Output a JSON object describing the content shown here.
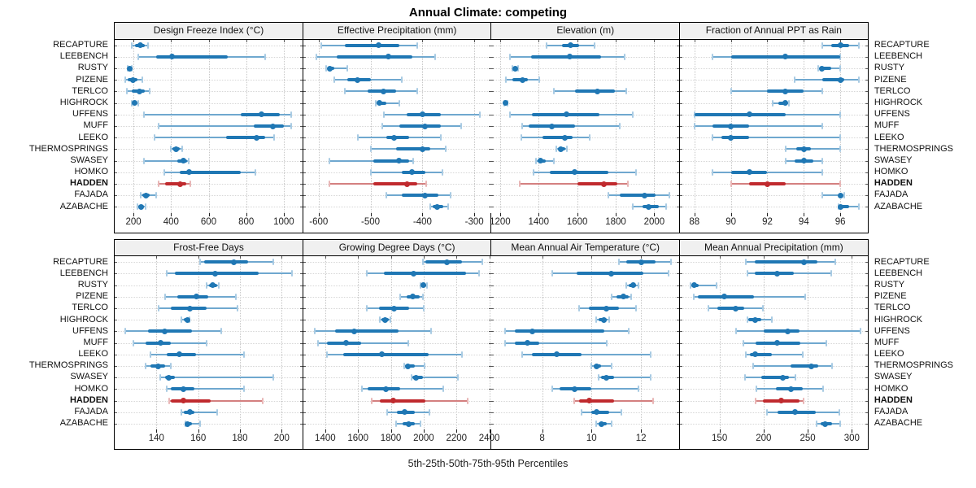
{
  "title": "Annual Climate: competing",
  "caption": "5th-25th-50th-75th-95th Percentiles",
  "highlight_site": "HADDEN",
  "colors": {
    "blue": "#1f77b4",
    "blue_line": "#6fa8cf",
    "blue_cap": "#a9cbe3",
    "red": "#c02a2e",
    "red_line": "#d48080",
    "red_cap": "#e8b6b6",
    "header_bg": "#f0f0f0",
    "grid": "#c6c6c6",
    "border": "#000000"
  },
  "sites": [
    "RECAPTURE",
    "LEEBENCH",
    "RUSTY",
    "PIZENE",
    "TERLCO",
    "HIGHROCK",
    "UFFENS",
    "MUFF",
    "LEEKO",
    "THERMOSPRINGS",
    "SWASEY",
    "HOMKO",
    "HADDEN",
    "FAJADA",
    "AZABACHE"
  ],
  "chart_data": {
    "type": "dotplot-percentiles",
    "percentiles": [
      5,
      25,
      50,
      75,
      95
    ],
    "rows": [
      "RECAPTURE",
      "LEEBENCH",
      "RUSTY",
      "PIZENE",
      "TERLCO",
      "HIGHROCK",
      "UFFENS",
      "MUFF",
      "LEEKO",
      "THERMOSPRINGS",
      "SWASEY",
      "HOMKO",
      "HADDEN",
      "FAJADA",
      "AZABACHE"
    ],
    "panels": [
      {
        "key": "design-freeze-index",
        "title": "Design Freeze Index (°C)",
        "band": "top",
        "ticks": [
          200,
          400,
          600,
          800,
          1000
        ],
        "range": [
          100,
          1100
        ],
        "values": {
          "RECAPTURE": [
            190,
            207,
            236,
            260,
            276
          ],
          "LEEBENCH": [
            225,
            320,
            405,
            700,
            900
          ],
          "RUSTY": [
            170,
            174,
            178,
            183,
            192
          ],
          "PIZENE": [
            155,
            168,
            197,
            222,
            247
          ],
          "TERLCO": [
            163,
            193,
            232,
            261,
            285
          ],
          "HIGHROCK": [
            193,
            200,
            207,
            215,
            226
          ],
          "UFFENS": [
            255,
            770,
            883,
            980,
            1040
          ],
          "MUFF": [
            334,
            840,
            940,
            1000,
            1040
          ],
          "LEEKO": [
            310,
            695,
            857,
            900,
            948
          ],
          "THERMOSPRINGS": [
            400,
            407,
            429,
            448,
            460
          ],
          "SWASEY": [
            255,
            434,
            466,
            485,
            495
          ],
          "HOMKO": [
            364,
            448,
            495,
            770,
            850
          ],
          "HADDEN": [
            335,
            368,
            450,
            480,
            504
          ],
          "FAJADA": [
            237,
            247,
            266,
            288,
            320
          ],
          "AZABACHE": [
            222,
            226,
            241,
            255,
            266
          ]
        }
      },
      {
        "key": "effective-precipitation",
        "title": "Effective Precipitation (mm)",
        "band": "top",
        "ticks": [
          -600,
          -500,
          -400,
          -300
        ],
        "range": [
          -630,
          -268
        ],
        "values": {
          "RECAPTURE": [
            -595,
            -550,
            -485,
            -445,
            -410
          ],
          "LEEBENCH": [
            -605,
            -565,
            -465,
            -420,
            -375
          ],
          "RUSTY": [
            -585,
            -582,
            -578,
            -570,
            -545
          ],
          "PIZENE": [
            -570,
            -545,
            -525,
            -500,
            -440
          ],
          "TERLCO": [
            -550,
            -505,
            -475,
            -450,
            -410
          ],
          "HIGHROCK": [
            -490,
            -487,
            -483,
            -470,
            -445
          ],
          "UFFENS": [
            -475,
            -430,
            -400,
            -365,
            -290
          ],
          "MUFF": [
            -478,
            -445,
            -395,
            -365,
            -325
          ],
          "LEEKO": [
            -525,
            -470,
            -455,
            -425,
            -365
          ],
          "THERMOSPRINGS": [
            -500,
            -450,
            -400,
            -385,
            -355
          ],
          "SWASEY": [
            -580,
            -495,
            -445,
            -425,
            -418
          ],
          "HOMKO": [
            -500,
            -440,
            -420,
            -395,
            -362
          ],
          "HADDEN": [
            -580,
            -495,
            -430,
            -410,
            -392
          ],
          "FAJADA": [
            -470,
            -440,
            -395,
            -370,
            -345
          ],
          "AZABACHE": [
            -385,
            -380,
            -372,
            -360,
            -350
          ]
        }
      },
      {
        "key": "elevation",
        "title": "Elevation (m)",
        "band": "top",
        "ticks": [
          1200,
          1400,
          1600,
          1800,
          2000
        ],
        "range": [
          1155,
          2130
        ],
        "values": {
          "RECAPTURE": [
            1440,
            1520,
            1565,
            1610,
            1690
          ],
          "LEEBENCH": [
            1250,
            1360,
            1560,
            1725,
            1845
          ],
          "RUSTY": [
            1265,
            1272,
            1280,
            1287,
            1295
          ],
          "PIZENE": [
            1230,
            1265,
            1315,
            1345,
            1405
          ],
          "TERLCO": [
            1480,
            1590,
            1705,
            1795,
            1855
          ],
          "HIGHROCK": [
            1222,
            1226,
            1230,
            1234,
            1240
          ],
          "UFFENS": [
            1250,
            1365,
            1545,
            1715,
            1890
          ],
          "MUFF": [
            1315,
            1350,
            1470,
            1590,
            1820
          ],
          "LEEKO": [
            1310,
            1420,
            1535,
            1575,
            1665
          ],
          "THERMOSPRINGS": [
            1490,
            1500,
            1515,
            1538,
            1548
          ],
          "SWASEY": [
            1385,
            1395,
            1410,
            1435,
            1477
          ],
          "HOMKO": [
            1375,
            1460,
            1585,
            1760,
            1905
          ],
          "HADDEN": [
            1300,
            1600,
            1738,
            1810,
            1865
          ],
          "FAJADA": [
            1760,
            1820,
            1950,
            2005,
            2080
          ],
          "AZABACHE": [
            1890,
            1940,
            1970,
            2025,
            2060
          ]
        }
      },
      {
        "key": "fraction-annual-ppt-rain",
        "title": "Fraction of Annual PPT as Rain",
        "band": "top",
        "ticks": [
          88,
          90,
          92,
          94,
          96
        ],
        "range": [
          87.2,
          97.5
        ],
        "values": {
          "RECAPTURE": [
            95,
            95.5,
            96,
            96.5,
            97
          ],
          "LEEBENCH": [
            89,
            90,
            93,
            96,
            96
          ],
          "RUSTY": [
            94.8,
            95,
            95,
            95.5,
            96
          ],
          "PIZENE": [
            93.5,
            95,
            96,
            96.2,
            97
          ],
          "TERLCO": [
            90,
            92,
            93,
            94,
            95
          ],
          "HIGHROCK": [
            92.3,
            92.6,
            93,
            93,
            93.2
          ],
          "UFFENS": [
            88,
            88,
            91,
            93,
            96
          ],
          "MUFF": [
            88,
            89,
            90,
            91,
            95
          ],
          "LEEKO": [
            89,
            89.5,
            90,
            91,
            96
          ],
          "THERMOSPRINGS": [
            93,
            93.6,
            94,
            94.4,
            96
          ],
          "SWASEY": [
            93,
            93.5,
            94,
            94.5,
            95
          ],
          "HOMKO": [
            89,
            90,
            91,
            92,
            95
          ],
          "HADDEN": [
            90,
            91,
            92,
            93,
            96
          ],
          "FAJADA": [
            95,
            95.9,
            96,
            96.1,
            96.2
          ],
          "AZABACHE": [
            95.9,
            96,
            96,
            96.5,
            97
          ]
        }
      },
      {
        "key": "frost-free-days",
        "title": "Frost-Free Days",
        "band": "bottom",
        "ticks": [
          140,
          160,
          180,
          200
        ],
        "range": [
          120,
          210
        ],
        "values": {
          "RECAPTURE": [
            161,
            163,
            177,
            184,
            196
          ],
          "LEEBENCH": [
            145,
            149,
            168,
            189,
            205
          ],
          "RUSTY": [
            164,
            165,
            167,
            169,
            170
          ],
          "PIZENE": [
            144,
            150,
            159,
            165,
            178
          ],
          "TERLCO": [
            141,
            147,
            156,
            164,
            179
          ],
          "HIGHROCK": [
            152,
            153,
            155,
            155.5,
            156
          ],
          "UFFENS": [
            125,
            136,
            144,
            157,
            171
          ],
          "MUFF": [
            129,
            135,
            142,
            147,
            164
          ],
          "LEEKO": [
            137,
            145,
            151,
            159,
            182
          ],
          "THERMOSPRINGS": [
            135,
            137,
            141,
            144,
            147
          ],
          "SWASEY": [
            142,
            144,
            146,
            149,
            196
          ],
          "HOMKO": [
            145,
            147,
            153,
            158,
            182
          ],
          "HADDEN": [
            146,
            147,
            153,
            166,
            191
          ],
          "FAJADA": [
            152,
            153,
            156,
            158,
            169
          ],
          "AZABACHE": [
            154,
            154.5,
            155,
            157,
            161
          ]
        }
      },
      {
        "key": "growing-degree-days",
        "title": "Growing Degree Days (°C)",
        "band": "bottom",
        "ticks": [
          1400,
          1600,
          1800,
          2000,
          2200,
          2400
        ],
        "range": [
          1265,
          2410
        ],
        "values": {
          "RECAPTURE": [
            1995,
            2010,
            2140,
            2235,
            2355
          ],
          "LEEBENCH": [
            1655,
            1760,
            1940,
            2260,
            2340
          ],
          "RUSTY": [
            1980,
            1985,
            2000,
            2015,
            2020
          ],
          "PIZENE": [
            1855,
            1895,
            1935,
            1975,
            1995
          ],
          "TERLCO": [
            1655,
            1730,
            1820,
            1910,
            2000
          ],
          "HIGHROCK": [
            1735,
            1745,
            1765,
            1785,
            1795
          ],
          "UFFENS": [
            1335,
            1460,
            1575,
            1845,
            2045
          ],
          "MUFF": [
            1355,
            1410,
            1525,
            1620,
            1905
          ],
          "LEEKO": [
            1410,
            1510,
            1745,
            2030,
            2235
          ],
          "THERMOSPRINGS": [
            1880,
            1885,
            1905,
            1945,
            2005
          ],
          "SWASEY": [
            1925,
            1930,
            1955,
            1995,
            2210
          ],
          "HOMKO": [
            1625,
            1660,
            1770,
            1855,
            2120
          ],
          "HADDEN": [
            1685,
            1735,
            1815,
            2010,
            2270
          ],
          "FAJADA": [
            1775,
            1835,
            1885,
            1945,
            2035
          ],
          "AZABACHE": [
            1830,
            1870,
            1910,
            1945,
            1980
          ]
        }
      },
      {
        "key": "mean-annual-air-temperature",
        "title": "Mean Annual Air Temperature (°C)",
        "band": "bottom",
        "ticks": [
          8,
          10,
          12
        ],
        "range": [
          5.95,
          13.55
        ],
        "values": {
          "RECAPTURE": [
            11.1,
            11.4,
            12.0,
            12.6,
            13.2
          ],
          "LEEBENCH": [
            8.4,
            9.4,
            10.8,
            12.1,
            13.1
          ],
          "RUSTY": [
            11.4,
            11.5,
            11.7,
            11.8,
            11.9
          ],
          "PIZENE": [
            10.8,
            11.0,
            11.3,
            11.5,
            11.6
          ],
          "TERLCO": [
            9.5,
            9.9,
            10.6,
            11.1,
            11.8
          ],
          "HIGHROCK": [
            10.2,
            10.3,
            10.5,
            10.6,
            10.7
          ],
          "UFFENS": [
            6.5,
            6.9,
            7.6,
            10.5,
            11.5
          ],
          "MUFF": [
            6.5,
            6.9,
            7.4,
            7.9,
            10.6
          ],
          "LEEKO": [
            7.2,
            7.6,
            8.6,
            9.6,
            12.4
          ],
          "THERMOSPRINGS": [
            10.0,
            10.1,
            10.2,
            10.4,
            10.8
          ],
          "SWASEY": [
            10.3,
            10.4,
            10.6,
            10.9,
            12.4
          ],
          "HOMKO": [
            8.4,
            8.7,
            9.3,
            10.0,
            11.9
          ],
          "HADDEN": [
            9.3,
            9.5,
            9.9,
            10.9,
            12.5
          ],
          "FAJADA": [
            9.6,
            10.0,
            10.2,
            10.7,
            11.2
          ],
          "AZABACHE": [
            10.2,
            10.3,
            10.4,
            10.6,
            10.8
          ]
        }
      },
      {
        "key": "mean-annual-precipitation",
        "title": "Mean Annual Precipitation (mm)",
        "band": "bottom",
        "ticks": [
          150,
          200,
          250,
          300
        ],
        "range": [
          105,
          318
        ],
        "values": {
          "RECAPTURE": [
            180,
            190,
            246,
            261,
            281
          ],
          "LEEBENCH": [
            182,
            190,
            215,
            234,
            277
          ],
          "RUSTY": [
            117,
            118,
            121,
            126,
            147
          ],
          "PIZENE": [
            121,
            125,
            155,
            189,
            247
          ],
          "TERLCO": [
            137,
            148,
            168,
            178,
            199
          ],
          "HIGHROCK": [
            182,
            183,
            190,
            197,
            209
          ],
          "UFFENS": [
            169,
            200,
            227,
            241,
            310
          ],
          "MUFF": [
            177,
            191,
            215,
            242,
            271
          ],
          "LEEKO": [
            180,
            184,
            190,
            209,
            244
          ],
          "THERMOSPRINGS": [
            188,
            231,
            254,
            262,
            278
          ],
          "SWASEY": [
            179,
            197,
            222,
            229,
            236
          ],
          "HOMKO": [
            192,
            214,
            231,
            244,
            267
          ],
          "HADDEN": [
            191,
            199,
            220,
            241,
            245
          ],
          "FAJADA": [
            204,
            216,
            236,
            259,
            286
          ],
          "AZABACHE": [
            260,
            265,
            270,
            278,
            287
          ]
        }
      }
    ]
  }
}
